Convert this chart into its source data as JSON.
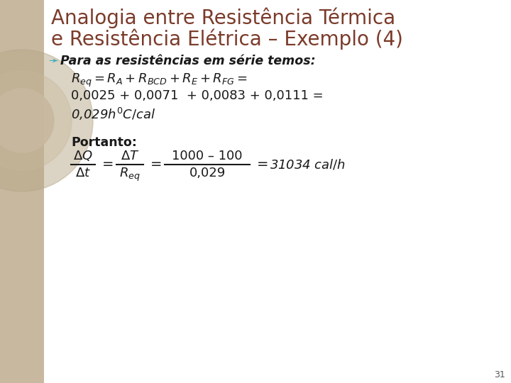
{
  "title_line1": "Analogia entre Resistência Térmica",
  "title_line2": "e Resistência Elétrica – Exemplo (4)",
  "title_color": "#7B3B2A",
  "bg_color": "#FFFFFF",
  "left_strip_color": "#C8B8A0",
  "body_text_color": "#1A1A1A",
  "bullet_color": "#3AACB8",
  "slide_number": "31",
  "slide_number_color": "#555555"
}
